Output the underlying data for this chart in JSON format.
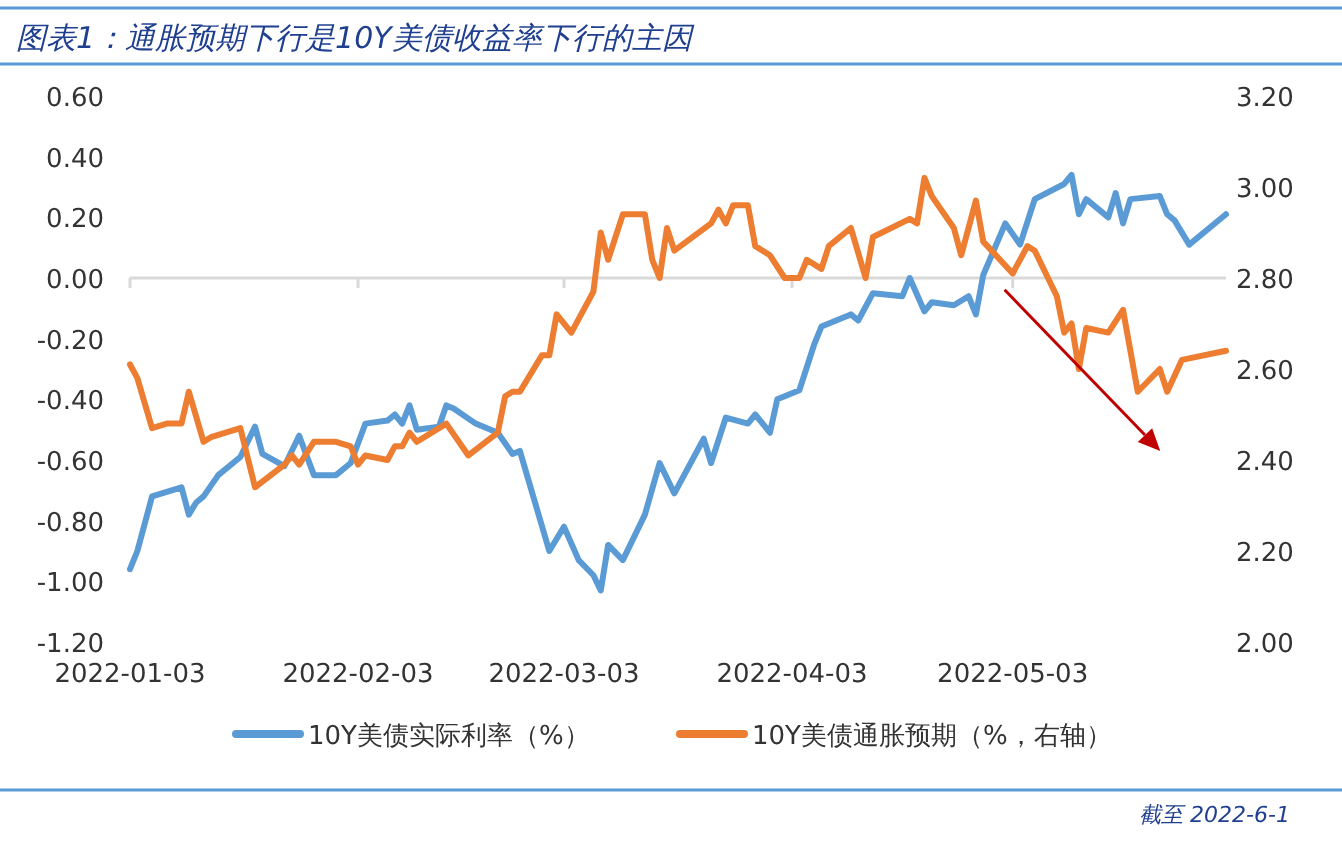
{
  "chart_data": {
    "type": "line",
    "title": "图表1：通胀预期下行是10Y美债收益率下行的主因",
    "annotations": [
      "截至 2022-6-1"
    ],
    "xlim": [
      "2022-01-03",
      "2022-06-01"
    ],
    "xticks": [
      "2022-01-03",
      "2022-02-03",
      "2022-03-03",
      "2022-04-03",
      "2022-05-03"
    ],
    "ylim": [
      -1.2,
      0.6
    ],
    "yticks": [
      {
        "value": -1.2,
        "label": "-1.20"
      },
      {
        "value": -1.0,
        "label": "-1.00"
      },
      {
        "value": -0.8,
        "label": "-0.80"
      },
      {
        "value": -0.6,
        "label": "-0.60"
      },
      {
        "value": -0.4,
        "label": "-0.40"
      },
      {
        "value": -0.2,
        "label": "-0.20"
      },
      {
        "value": 0,
        "label": "0.00"
      },
      {
        "value": 0.2,
        "label": "0.20"
      },
      {
        "value": 0.4,
        "label": "0.40"
      },
      {
        "value": 0.6,
        "label": "0.60"
      }
    ],
    "y2lim": [
      2.0,
      3.2
    ],
    "y2ticks": [
      {
        "value": 2.0,
        "label": "2.00"
      },
      {
        "value": 2.2,
        "label": "2.20"
      },
      {
        "value": 2.4,
        "label": "2.40"
      },
      {
        "value": 2.6,
        "label": "2.60"
      },
      {
        "value": 2.8,
        "label": "2.80"
      },
      {
        "value": 3.0,
        "label": "3.00"
      },
      {
        "value": 3.2,
        "label": "3.20"
      }
    ],
    "ref_lines": [
      {
        "axis": "y",
        "value": 0,
        "color": "#d9d9d9"
      }
    ],
    "grid": false,
    "legend": "bottom",
    "marker": "none",
    "line_style": "solid",
    "series": [
      {
        "name": "10Y美债实际利率（%）",
        "color": "#5b9bd5",
        "x": [
          "2022-01-03",
          "2022-01-04",
          "2022-01-06",
          "2022-01-10",
          "2022-01-11",
          "2022-01-12",
          "2022-01-13",
          "2022-01-15",
          "2022-01-18",
          "2022-01-20",
          "2022-01-21",
          "2022-01-24",
          "2022-01-26",
          "2022-01-28",
          "2022-01-31",
          "2022-02-02",
          "2022-02-04",
          "2022-02-07",
          "2022-02-08",
          "2022-02-09",
          "2022-02-10",
          "2022-02-11",
          "2022-02-14",
          "2022-02-15",
          "2022-02-16",
          "2022-02-19",
          "2022-02-22",
          "2022-02-24",
          "2022-02-25",
          "2022-03-01",
          "2022-03-03",
          "2022-03-05",
          "2022-03-07",
          "2022-03-08",
          "2022-03-09",
          "2022-03-11",
          "2022-03-14",
          "2022-03-16",
          "2022-03-18",
          "2022-03-22",
          "2022-03-23",
          "2022-03-25",
          "2022-03-28",
          "2022-03-29",
          "2022-03-31",
          "2022-04-01",
          "2022-04-04",
          "2022-04-06",
          "2022-04-07",
          "2022-04-11",
          "2022-04-12",
          "2022-04-14",
          "2022-04-18",
          "2022-04-19",
          "2022-04-21",
          "2022-04-22",
          "2022-04-25",
          "2022-04-27",
          "2022-04-28",
          "2022-04-29",
          "2022-05-02",
          "2022-05-04",
          "2022-05-06",
          "2022-05-10",
          "2022-05-11",
          "2022-05-12",
          "2022-05-13",
          "2022-05-16",
          "2022-05-17",
          "2022-05-18",
          "2022-05-19",
          "2022-05-23",
          "2022-05-24",
          "2022-05-25",
          "2022-05-27",
          "2022-06-01"
        ],
        "values": [
          -0.96,
          -0.9,
          -0.72,
          -0.69,
          -0.78,
          -0.74,
          -0.72,
          -0.65,
          -0.59,
          -0.49,
          -0.58,
          -0.62,
          -0.52,
          -0.65,
          -0.65,
          -0.61,
          -0.48,
          -0.47,
          -0.45,
          -0.48,
          -0.42,
          -0.5,
          -0.49,
          -0.42,
          -0.43,
          -0.48,
          -0.51,
          -0.58,
          -0.57,
          -0.9,
          -0.82,
          -0.93,
          -0.98,
          -1.03,
          -0.88,
          -0.93,
          -0.78,
          -0.61,
          -0.71,
          -0.53,
          -0.61,
          -0.46,
          -0.48,
          -0.45,
          -0.51,
          -0.4,
          -0.37,
          -0.22,
          -0.16,
          -0.12,
          -0.14,
          -0.05,
          -0.06,
          0.0,
          -0.11,
          -0.08,
          -0.09,
          -0.06,
          -0.12,
          0.01,
          0.18,
          0.11,
          0.26,
          0.31,
          0.34,
          0.21,
          0.26,
          0.2,
          0.28,
          0.18,
          0.26,
          0.27,
          0.21,
          0.19,
          0.11,
          0.21
        ]
      },
      {
        "name": "10Y美债通胀预期（%，右轴）",
        "color": "#ed7d31",
        "axis": "y2",
        "x": [
          "2022-01-03",
          "2022-01-04",
          "2022-01-06",
          "2022-01-08",
          "2022-01-10",
          "2022-01-11",
          "2022-01-13",
          "2022-01-14",
          "2022-01-18",
          "2022-01-20",
          "2022-01-24",
          "2022-01-25",
          "2022-01-26",
          "2022-01-28",
          "2022-01-31",
          "2022-02-02",
          "2022-02-03",
          "2022-02-04",
          "2022-02-07",
          "2022-02-08",
          "2022-02-09",
          "2022-02-10",
          "2022-02-11",
          "2022-02-15",
          "2022-02-18",
          "2022-02-22",
          "2022-02-23",
          "2022-02-24",
          "2022-02-25",
          "2022-02-28",
          "2022-03-01",
          "2022-03-02",
          "2022-03-04",
          "2022-03-07",
          "2022-03-08",
          "2022-03-09",
          "2022-03-11",
          "2022-03-14",
          "2022-03-15",
          "2022-03-16",
          "2022-03-17",
          "2022-03-18",
          "2022-03-23",
          "2022-03-24",
          "2022-03-25",
          "2022-03-26",
          "2022-03-28",
          "2022-03-29",
          "2022-03-31",
          "2022-04-02",
          "2022-04-04",
          "2022-04-05",
          "2022-04-07",
          "2022-04-08",
          "2022-04-11",
          "2022-04-13",
          "2022-04-14",
          "2022-04-19",
          "2022-04-20",
          "2022-04-21",
          "2022-04-22",
          "2022-04-25",
          "2022-04-26",
          "2022-04-28",
          "2022-04-29",
          "2022-05-03",
          "2022-05-05",
          "2022-05-06",
          "2022-05-09",
          "2022-05-10",
          "2022-05-11",
          "2022-05-12",
          "2022-05-13",
          "2022-05-16",
          "2022-05-18",
          "2022-05-20",
          "2022-05-23",
          "2022-05-24",
          "2022-05-26",
          "2022-06-01"
        ],
        "values": [
          2.61,
          2.58,
          2.47,
          2.48,
          2.48,
          2.55,
          2.44,
          2.45,
          2.47,
          2.34,
          2.39,
          2.41,
          2.39,
          2.44,
          2.44,
          2.43,
          2.39,
          2.41,
          2.4,
          2.43,
          2.43,
          2.46,
          2.44,
          2.48,
          2.41,
          2.46,
          2.54,
          2.55,
          2.55,
          2.63,
          2.63,
          2.72,
          2.68,
          2.77,
          2.9,
          2.84,
          2.94,
          2.94,
          2.84,
          2.8,
          2.91,
          2.86,
          2.92,
          2.95,
          2.92,
          2.96,
          2.96,
          2.87,
          2.85,
          2.8,
          2.8,
          2.84,
          2.82,
          2.87,
          2.91,
          2.8,
          2.89,
          2.93,
          2.92,
          3.02,
          2.98,
          2.91,
          2.85,
          2.97,
          2.88,
          2.81,
          2.87,
          2.86,
          2.76,
          2.68,
          2.7,
          2.6,
          2.69,
          2.68,
          2.73,
          2.55,
          2.6,
          2.55,
          2.62,
          2.64
        ]
      }
    ]
  }
}
